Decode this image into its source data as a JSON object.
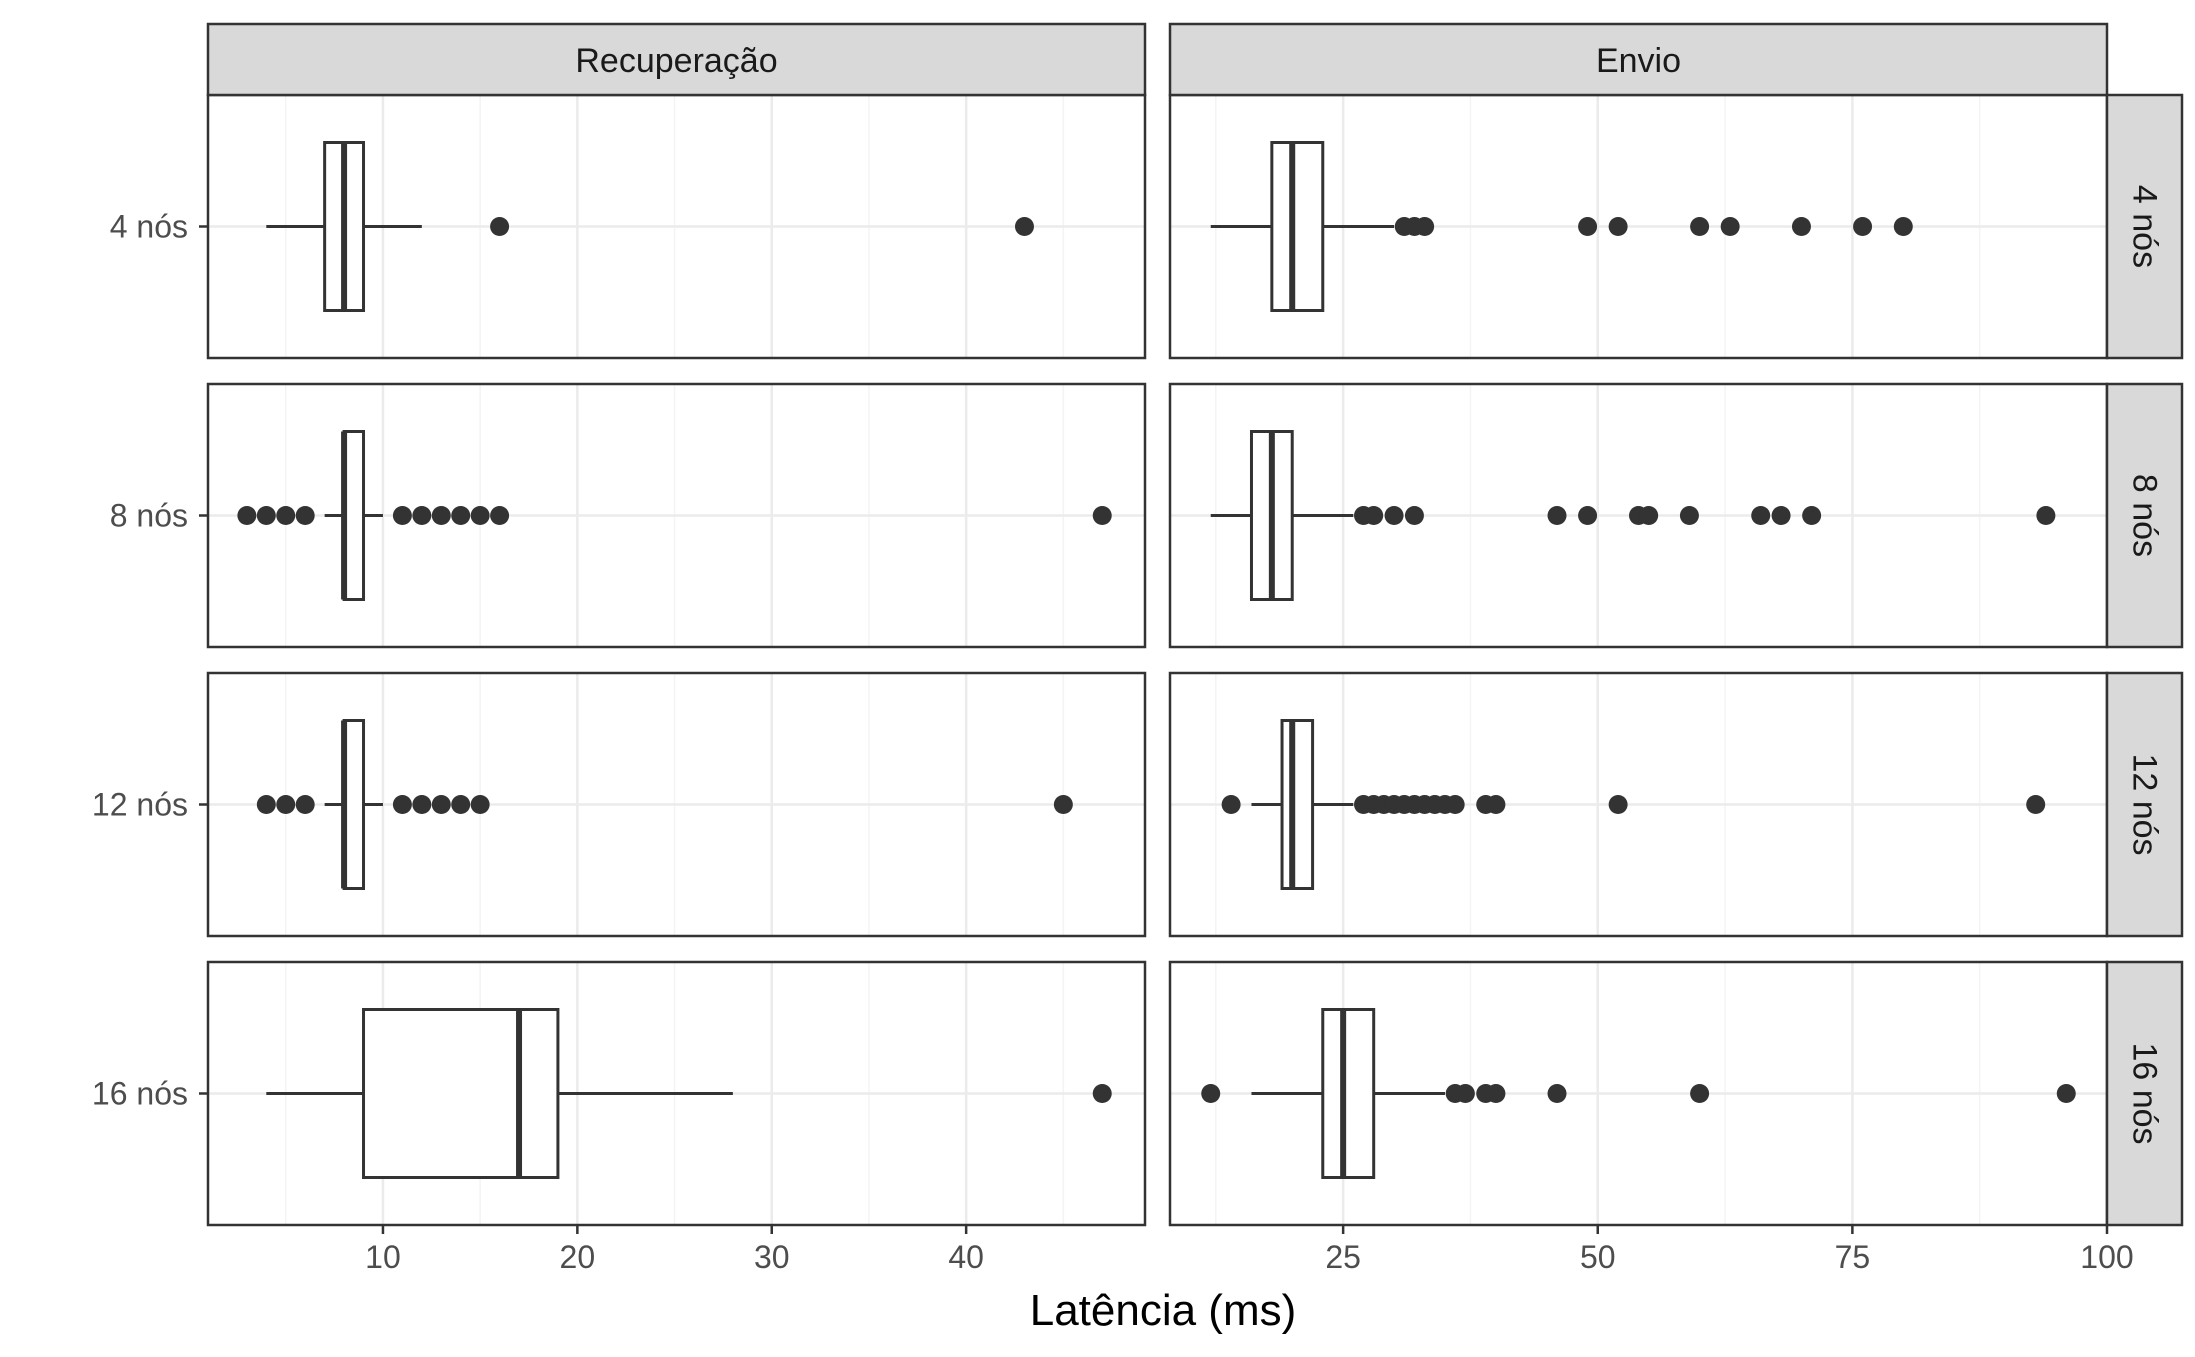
{
  "chart_data": {
    "type": "boxplot",
    "xlabel": "Latência (ms)",
    "facet_columns": [
      "Recuperação",
      "Envio"
    ],
    "facet_rows": [
      "4 nós",
      "8 nós",
      "12 nós",
      "16 nós"
    ],
    "panels": [
      {
        "column": "Recuperação",
        "xlim": [
          1,
          49.2
        ],
        "xticks": [
          10,
          20,
          30,
          40
        ],
        "rows": [
          {
            "row": "4 nós",
            "whisker_low": 4,
            "q1": 7,
            "median": 8,
            "q3": 9,
            "whisker_high": 12,
            "outliers": [
              16,
              43
            ]
          },
          {
            "row": "8 nós",
            "whisker_low": 7,
            "q1": 8,
            "median": 8,
            "q3": 9,
            "whisker_high": 10,
            "outliers": [
              3,
              4,
              5,
              6,
              11,
              12,
              13,
              14,
              15,
              16,
              47
            ]
          },
          {
            "row": "12 nós",
            "whisker_low": 7,
            "q1": 8,
            "median": 8,
            "q3": 9,
            "whisker_high": 10,
            "outliers": [
              4,
              5,
              6,
              11,
              12,
              13,
              14,
              15,
              45
            ]
          },
          {
            "row": "16 nós",
            "whisker_low": 4,
            "q1": 9,
            "median": 17,
            "q3": 19,
            "whisker_high": 28,
            "outliers": [
              47
            ]
          }
        ]
      },
      {
        "column": "Envio",
        "xlim": [
          8,
          100
        ],
        "xticks": [
          25,
          50,
          75,
          100
        ],
        "rows": [
          {
            "row": "4 nós",
            "whisker_low": 12,
            "q1": 18,
            "median": 20,
            "q3": 23,
            "whisker_high": 30,
            "outliers": [
              31,
              32,
              33,
              49,
              52,
              60,
              63,
              70,
              76,
              80
            ]
          },
          {
            "row": "8 nós",
            "whisker_low": 12,
            "q1": 16,
            "median": 18,
            "q3": 20,
            "whisker_high": 26,
            "outliers": [
              27,
              28,
              30,
              32,
              46,
              49,
              54,
              55,
              59,
              66,
              68,
              71,
              94
            ]
          },
          {
            "row": "12 nós",
            "whisker_low": 16,
            "q1": 19,
            "median": 20,
            "q3": 22,
            "whisker_high": 26,
            "outliers": [
              14,
              27,
              28,
              29,
              30,
              31,
              32,
              33,
              34,
              35,
              36,
              39,
              40,
              52,
              93
            ]
          },
          {
            "row": "16 nós",
            "whisker_low": 16,
            "q1": 23,
            "median": 25,
            "q3": 28,
            "whisker_high": 35,
            "outliers": [
              12,
              36,
              37,
              39,
              40,
              46,
              60,
              96
            ]
          }
        ]
      }
    ],
    "grid": true,
    "legend": "none",
    "colors": {
      "box_outline": "#333333",
      "box_fill": "#ffffff",
      "points": "#333333",
      "strip_fill": "#d9d9d9",
      "grid": "#ebebeb"
    }
  }
}
